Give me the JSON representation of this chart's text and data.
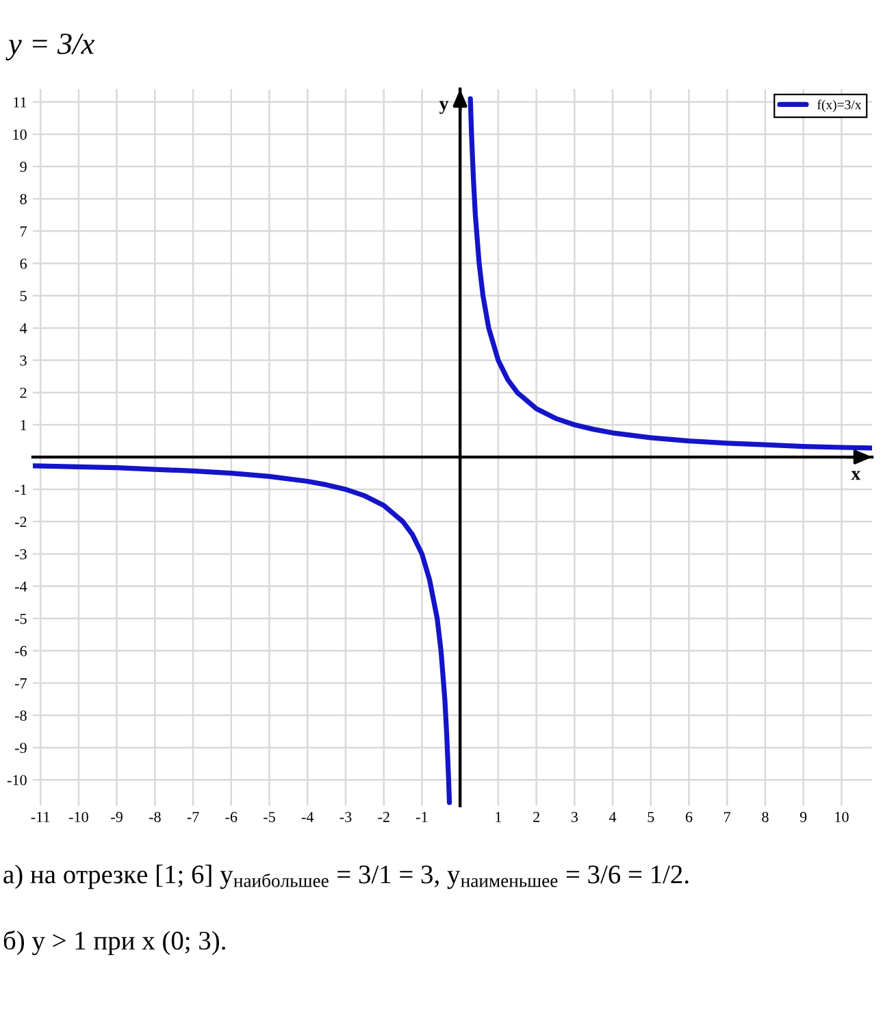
{
  "chart_data": {
    "type": "line",
    "title": "y = 3/x",
    "xlabel": "x",
    "ylabel": "y",
    "xlim": [
      -11.2,
      10.8
    ],
    "ylim": [
      -10.8,
      11.4
    ],
    "xticks": [
      -11,
      -10,
      -9,
      -8,
      -7,
      -6,
      -5,
      -4,
      -3,
      -2,
      -1,
      1,
      2,
      3,
      4,
      5,
      6,
      7,
      8,
      9,
      10
    ],
    "yticks": [
      -10,
      -9,
      -8,
      -7,
      -6,
      -5,
      -4,
      -3,
      -2,
      -1,
      1,
      2,
      3,
      4,
      5,
      6,
      7,
      8,
      9,
      10,
      11
    ],
    "grid": true,
    "legend": "top right",
    "series": [
      {
        "name": "f(x)=3/x",
        "color": "#1414c8",
        "x": [
          -11.2,
          -10,
          -9,
          -8,
          -7,
          -6,
          -5,
          -4,
          -3.5,
          -3,
          -2.5,
          -2,
          -1.5,
          -1.25,
          -1,
          -0.8,
          -0.6,
          -0.5,
          -0.4,
          -0.35,
          -0.3,
          -0.28,
          null,
          0.27,
          0.3,
          0.35,
          0.4,
          0.5,
          0.6,
          0.75,
          1,
          1.25,
          1.5,
          2,
          2.5,
          3,
          3.5,
          4,
          5,
          6,
          7,
          8,
          9,
          10,
          10.8
        ],
        "values": [
          -0.27,
          -0.3,
          -0.33,
          -0.38,
          -0.43,
          -0.5,
          -0.6,
          -0.75,
          -0.86,
          -1,
          -1.2,
          -1.5,
          -2,
          -2.4,
          -3,
          -3.8,
          -5,
          -6,
          -7.5,
          -8.6,
          -10,
          -10.7,
          null,
          11.1,
          10,
          8.6,
          7.5,
          6,
          5,
          4,
          3,
          2.4,
          2,
          1.5,
          1.2,
          1,
          0.86,
          0.75,
          0.6,
          0.5,
          0.43,
          0.38,
          0.33,
          0.3,
          0.28
        ]
      }
    ],
    "annotations": [
      "а) на отрезке [1; 6] y$_{наибольшее}$ = 3/1 = 3, y$_{наименьшее}$ = 3/6 = 1/2.",
      "б) y > 1 при x (0; 3)."
    ]
  }
}
